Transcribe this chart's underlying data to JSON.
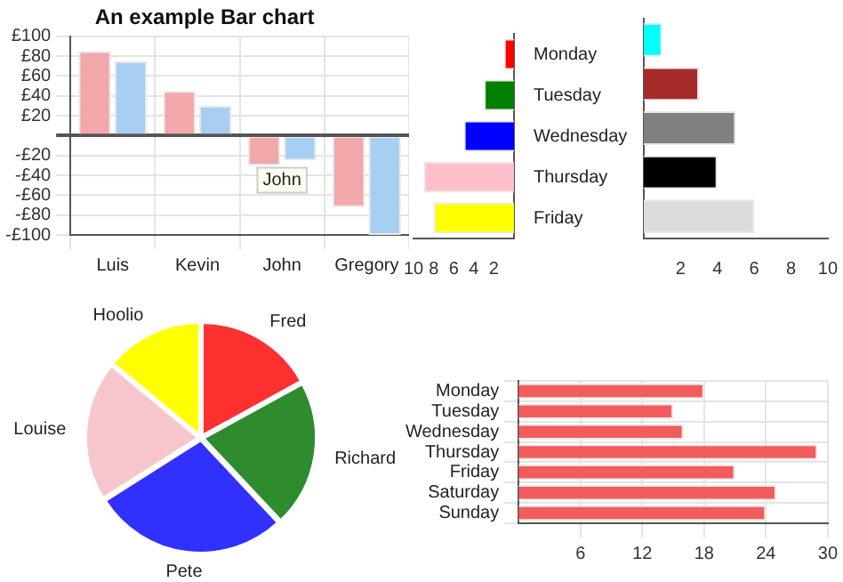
{
  "chart_data": [
    {
      "type": "bar",
      "title": "An example Bar chart",
      "categories": [
        "Luis",
        "Kevin",
        "John",
        "Gregory"
      ],
      "series": [
        {
          "color": "#f2a7aa",
          "values": [
            85,
            45,
            -30,
            -72
          ]
        },
        {
          "color": "#a6cff2",
          "values": [
            75,
            30,
            -25,
            -100
          ]
        }
      ],
      "ylim": [
        -100,
        100
      ],
      "yticks": [
        {
          "value": 100,
          "label": "£100"
        },
        {
          "value": 80,
          "label": "£80"
        },
        {
          "value": 60,
          "label": "£60"
        },
        {
          "value": 40,
          "label": "£40"
        },
        {
          "value": 20,
          "label": "£20"
        },
        {
          "value": 0,
          "label": null
        },
        {
          "value": -20,
          "label": "-£20"
        },
        {
          "value": -40,
          "label": "-£40"
        },
        {
          "value": -60,
          "label": "-£60"
        },
        {
          "value": -80,
          "label": "-£80"
        },
        {
          "value": -100,
          "label": "-£100"
        }
      ],
      "annotations": [
        {
          "text": "John",
          "x": "John",
          "y": -45
        }
      ],
      "grid": true,
      "legend": false
    },
    {
      "type": "bar",
      "orientation": "horizontal",
      "categories": [
        "Monday",
        "Tuesday",
        "Wednesday",
        "Thursday",
        "Friday"
      ],
      "values": [
        1,
        3,
        5,
        9,
        8
      ],
      "colors": [
        "#ff0000",
        "#008000",
        "#0000ff",
        "#ffc0cb",
        "#ffff00"
      ],
      "xlim": [
        10,
        0
      ],
      "xticks": [
        10,
        8,
        6,
        4,
        2
      ],
      "grid": false,
      "legend": false
    },
    {
      "type": "bar",
      "orientation": "horizontal",
      "categories": [
        null,
        null,
        null,
        null,
        null
      ],
      "values": [
        1,
        3,
        5,
        4,
        6
      ],
      "colors": [
        "#00ffff",
        "#a52a2a",
        "#808080",
        "#000000",
        "#dcdcdc"
      ],
      "xlim": [
        0,
        10
      ],
      "xticks": [
        2,
        4,
        6,
        8,
        10
      ],
      "tick_labels": "x",
      "grid": false,
      "legend": false
    },
    {
      "type": "pie",
      "categories": [
        "Fred",
        "Richard",
        "Pete",
        "Louise",
        "Hoolio"
      ],
      "values": [
        17,
        21,
        28,
        20,
        14
      ],
      "colors": [
        "#ff3030",
        "#2e8b2e",
        "#3030ff",
        "#f7c6cc",
        "#ffff00"
      ],
      "legend": false
    },
    {
      "type": "bar",
      "orientation": "horizontal",
      "categories": [
        "Monday",
        "Tuesday",
        "Wednesday",
        "Thursday",
        "Friday",
        "Saturday",
        "Sunday"
      ],
      "values": [
        18,
        15,
        16,
        29,
        21,
        25,
        24
      ],
      "color": "#f25c5c",
      "xlim": [
        0,
        30
      ],
      "xticks": [
        6,
        12,
        18,
        24,
        30
      ],
      "grid": true,
      "legend": false
    }
  ]
}
